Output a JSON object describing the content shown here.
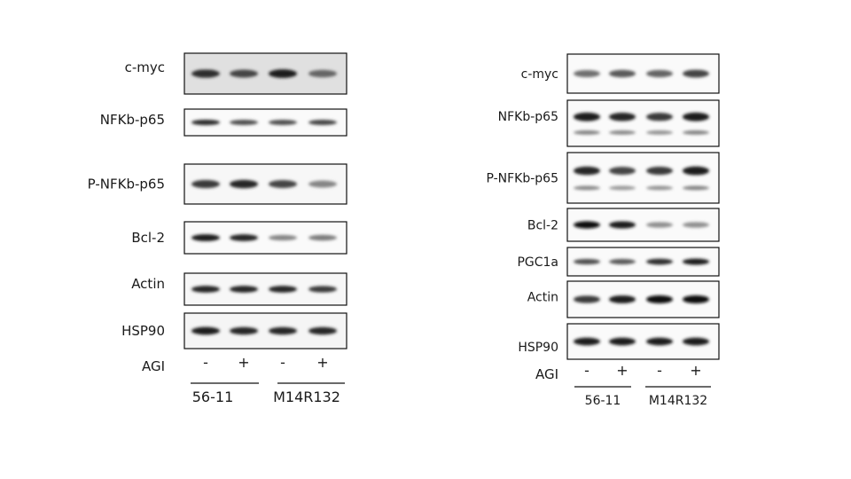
{
  "panels": [
    {
      "id": "left",
      "rows": [
        {
          "label": "c-myc",
          "intensities": [
            0.85,
            0.75,
            0.95,
            0.6
          ],
          "band_heights": [
            1,
            1,
            1,
            1
          ],
          "background": 0.12
        },
        {
          "label": "NFKb-p65",
          "intensities": [
            0.85,
            0.7,
            0.7,
            0.75
          ],
          "background": 0.02
        },
        {
          "label": "P-NFKb-p65",
          "intensities": [
            0.8,
            0.9,
            0.75,
            0.45
          ],
          "background": 0.03
        },
        {
          "label": "Bcl-2",
          "intensities": [
            0.95,
            0.9,
            0.45,
            0.5
          ],
          "background": 0.02
        },
        {
          "label": "Actin",
          "intensities": [
            0.9,
            0.9,
            0.9,
            0.8
          ],
          "background": 0.03
        },
        {
          "label": "HSP90",
          "intensities": [
            0.95,
            0.9,
            0.9,
            0.9
          ],
          "background": 0.04
        }
      ],
      "agi_label": "AGI",
      "signs": [
        "-",
        "+",
        "-",
        "+"
      ],
      "groups": [
        "56-11",
        "M14R132"
      ]
    },
    {
      "id": "right",
      "rows": [
        {
          "label": "c-myc",
          "intensities": [
            0.55,
            0.65,
            0.6,
            0.75
          ],
          "background": 0.02,
          "doublet": false
        },
        {
          "label": "NFKb-p65",
          "intensities": [
            0.95,
            0.9,
            0.8,
            0.95
          ],
          "background": 0.02,
          "doublet": true
        },
        {
          "label": "P-NFKb-p65",
          "intensities": [
            0.9,
            0.75,
            0.8,
            0.95
          ],
          "background": 0.02,
          "doublet": true
        },
        {
          "label": "Bcl-2",
          "intensities": [
            1.0,
            0.95,
            0.4,
            0.4
          ],
          "background": 0.02,
          "doublet": false
        },
        {
          "label": "PGC1a",
          "intensities": [
            0.7,
            0.65,
            0.85,
            0.95
          ],
          "background": 0.02,
          "doublet": false
        },
        {
          "label": "Actin",
          "intensities": [
            0.8,
            0.95,
            1.0,
            1.0
          ],
          "background": 0.02,
          "doublet": false
        },
        {
          "label": "HSP90",
          "intensities": [
            0.95,
            0.95,
            0.95,
            0.95
          ],
          "background": 0.02,
          "doublet": false
        }
      ],
      "agi_label": "AGI",
      "signs": [
        "-",
        "+",
        "-",
        "+"
      ],
      "groups": [
        "56-11",
        "M14R132"
      ]
    }
  ]
}
